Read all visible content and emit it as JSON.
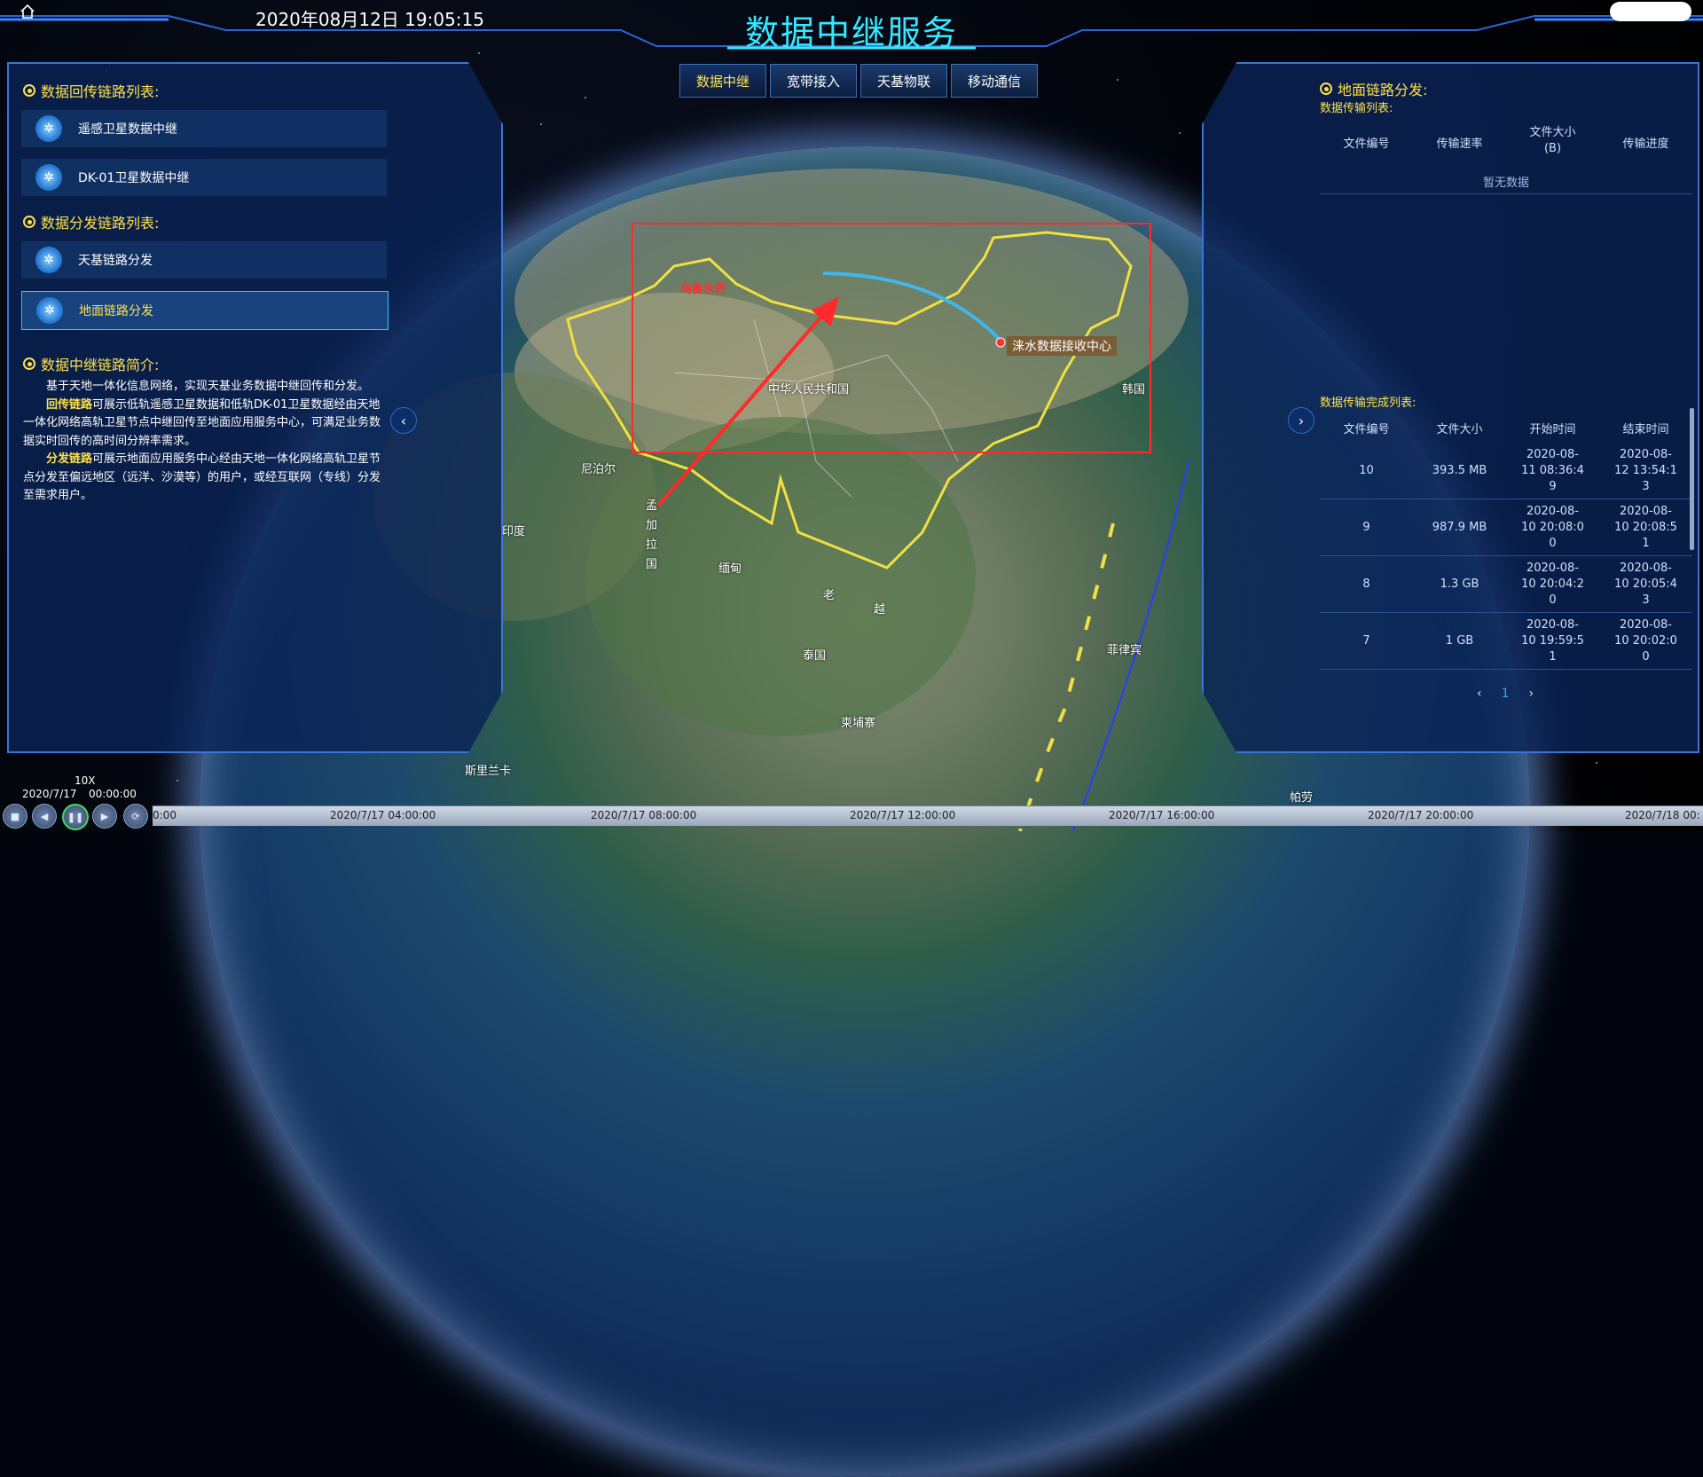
{
  "header": {
    "title": "数据中继服务",
    "datetime": "2020年08月12日 19:05:15"
  },
  "tabs": [
    {
      "label": "数据中继",
      "active": true
    },
    {
      "label": "宽带接入",
      "active": false
    },
    {
      "label": "天基物联",
      "active": false
    },
    {
      "label": "移动通信",
      "active": false
    }
  ],
  "left": {
    "backhaul_title": "数据回传链路列表:",
    "backhaul_items": [
      "遥感卫星数据中继",
      "DK-01卫星数据中继"
    ],
    "distribution_title": "数据分发链路列表:",
    "distribution_items": [
      "天基链路分发",
      "地面链路分发"
    ],
    "intro_title": "数据中继链路简介:",
    "intro_p1": "基于天地一体化信息网络，实现天基业务数据中继回传和分发。",
    "intro_hl1": "回传链路",
    "intro_p2": "可展示低轨遥感卫星数据和低轨DK-01卫星数据经由天地一体化网络高轨卫星节点中继回传至地面应用服务中心，可满足业务数据实时回传的高时间分辨率需求。",
    "intro_hl2": "分发链路",
    "intro_p3": "可展示地面应用服务中心经由天地一体化网络高轨卫星节点分发至偏远地区（远洋、沙漠等）的用户，或经互联网（专线）分发至需求用户。"
  },
  "right": {
    "title": "地面链路分发:",
    "transfer_list_label": "数据传输列表:",
    "transfer_headers": [
      "文件编号",
      "传输速率",
      "文件大小\n(B)",
      "传输进度"
    ],
    "no_data": "暂无数据",
    "complete_list_label": "数据传输完成列表:",
    "complete_headers": [
      "文件编号",
      "文件大小",
      "开始时间",
      "结束时间"
    ],
    "complete_rows": [
      {
        "id": "10",
        "size": "393.5 MB",
        "start": "2020-08-\n11 08:36:4\n9",
        "end": "2020-08-\n12 13:54:1\n3"
      },
      {
        "id": "9",
        "size": "987.9 MB",
        "start": "2020-08-\n10 20:08:0\n0",
        "end": "2020-08-\n10 20:08:5\n1"
      },
      {
        "id": "8",
        "size": "1.3 GB",
        "start": "2020-08-\n10 20:04:2\n0",
        "end": "2020-08-\n10 20:05:4\n3"
      },
      {
        "id": "7",
        "size": "1 GB",
        "start": "2020-08-\n10 19:59:5\n1",
        "end": "2020-08-\n10 20:02:0\n0"
      }
    ],
    "pager_prev": "‹",
    "pager_current": "1",
    "pager_next": "›"
  },
  "map": {
    "station_label": "涞水数据接收中心",
    "labels": [
      {
        "text": "乌鲁木齐",
        "red": true
      },
      {
        "text": "中华人民共和国",
        "red": false
      },
      {
        "text": "尼泊尔",
        "red": false
      },
      {
        "text": "印度",
        "red": false
      },
      {
        "text": "孟加拉国",
        "red": false
      },
      {
        "text": "缅甸",
        "red": false
      },
      {
        "text": "老",
        "red": false
      },
      {
        "text": "越",
        "red": false
      },
      {
        "text": "泰国",
        "red": false
      },
      {
        "text": "柬埔寨",
        "red": false
      },
      {
        "text": "菲律宾",
        "red": false
      },
      {
        "text": "斯里兰卡",
        "red": false
      },
      {
        "text": "帕劳",
        "red": false
      },
      {
        "text": "韩国",
        "red": false
      }
    ]
  },
  "timeline": {
    "speed": "10X",
    "date": "2020/7/17",
    "time": "00:00:00",
    "ticks": [
      "0:00",
      "2020/7/17 04:00:00",
      "2020/7/17 08:00:00",
      "2020/7/17 12:00:00",
      "2020/7/17 16:00:00",
      "2020/7/17 20:00:00",
      "2020/7/18 00:"
    ]
  },
  "colors": {
    "title": "#35e8ff",
    "accent": "#ffe24a",
    "panel_border": "#3a74d6",
    "annotation": "#ff2a2a",
    "link": "#3fb6f0"
  }
}
